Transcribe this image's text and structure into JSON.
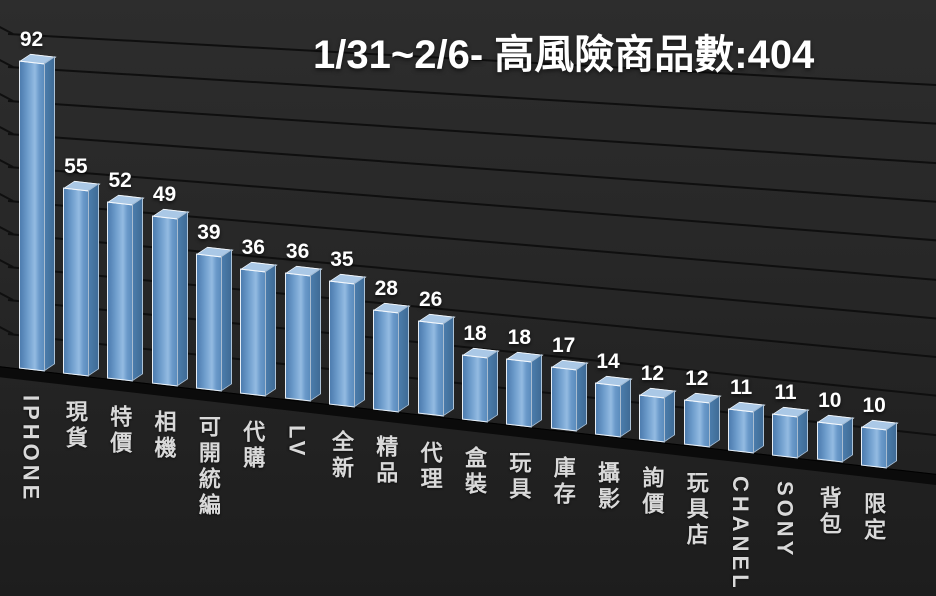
{
  "chart_data": {
    "type": "bar",
    "title": "1/31~2/6- 高風險商品數:404",
    "categories": [
      "IPHONE",
      "現貨",
      "特價",
      "相機",
      "可開統編",
      "代購",
      "LV",
      "全新",
      "精品",
      "代理",
      "盒裝",
      "玩具",
      "庫存",
      "攝影",
      "詢價",
      "玩具店",
      "CHANEL",
      "SONY",
      "背包",
      "限定"
    ],
    "values": [
      92,
      55,
      52,
      49,
      39,
      36,
      36,
      35,
      28,
      26,
      18,
      18,
      17,
      14,
      12,
      12,
      11,
      11,
      10,
      10
    ],
    "xlabel": "",
    "ylabel": "",
    "ylim": [
      0,
      100
    ],
    "gridline_step": 10,
    "grid": true,
    "legend": false,
    "value_labels": true,
    "style": "3d-column-dark",
    "colors": {
      "background": "#262626",
      "bar_front": "#6b9aca",
      "bar_highlight": "#93bbe2",
      "bar_top": "#aac8e6",
      "bar_side": "#4b7cab",
      "grid_line": "#0f0f0f",
      "floor": "#0b0b0b",
      "title_text": "#ffffff",
      "label_text": "#d9d9d9"
    }
  }
}
